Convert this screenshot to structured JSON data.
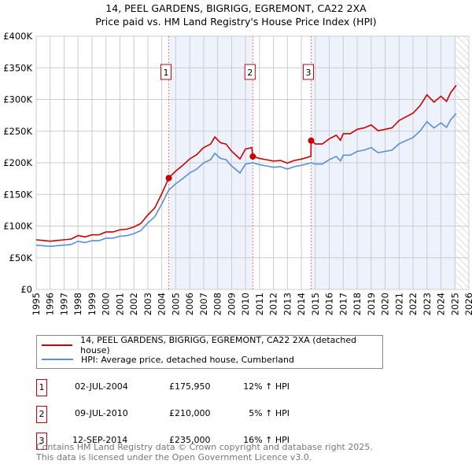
{
  "chart_data": {
    "type": "line",
    "title": "14, PEEL GARDENS, BIGRIGG, EGREMONT, CA22 2XA",
    "subtitle": "Price paid vs. HM Land Registry's House Price Index (HPI)",
    "xlim": [
      1995,
      2026
    ],
    "ylim": [
      0,
      400000
    ],
    "yticks": [
      0,
      50000,
      100000,
      150000,
      200000,
      250000,
      300000,
      350000,
      400000
    ],
    "ytick_labels": [
      "£0",
      "£50K",
      "£100K",
      "£150K",
      "£200K",
      "£250K",
      "£300K",
      "£350K",
      "£400K"
    ],
    "xticks": [
      "1995",
      "1996",
      "1997",
      "1998",
      "1999",
      "2000",
      "2001",
      "2002",
      "2003",
      "2004",
      "2005",
      "2006",
      "2007",
      "2008",
      "2009",
      "2010",
      "2011",
      "2012",
      "2013",
      "2014",
      "2015",
      "2016",
      "2017",
      "2018",
      "2019",
      "2020",
      "2021",
      "2022",
      "2023",
      "2024",
      "2025",
      "2026"
    ],
    "grid": true,
    "colors": {
      "property": "#cc0000",
      "hpi": "#5b8fd6",
      "shade": "#edf2fc",
      "marker": "#cc0000"
    },
    "shaded_ranges": [
      [
        2004.5,
        2010.52
      ],
      [
        2014.7,
        2025.1
      ]
    ],
    "forecast_hatch_from": 2025.1,
    "series": [
      {
        "name": "14, PEEL GARDENS, BIGRIGG, EGREMONT, CA22 2XA (detached house)",
        "key": "property",
        "x": [
          1995,
          1995.5,
          1996,
          1996.5,
          1997,
          1997.5,
          1998,
          1998.5,
          1999,
          1999.5,
          2000,
          2000.5,
          2001,
          2001.5,
          2002,
          2002.5,
          2003,
          2003.5,
          2004,
          2004.5,
          2005,
          2005.5,
          2006,
          2006.5,
          2007,
          2007.5,
          2007.8,
          2008.2,
          2008.6,
          2009,
          2009.6,
          2010,
          2010.45,
          2010.52,
          2011,
          2011.5,
          2012,
          2012.5,
          2013,
          2013.5,
          2014,
          2014.68,
          2014.7,
          2015,
          2015.5,
          2016,
          2016.5,
          2016.8,
          2017,
          2017.5,
          2018,
          2018.5,
          2019,
          2019.5,
          2020,
          2020.5,
          2021,
          2021.5,
          2022,
          2022.5,
          2023,
          2023.5,
          2024,
          2024.4,
          2024.7,
          2025.1
        ],
        "y": [
          78.4,
          77.3,
          76.2,
          77.3,
          78.4,
          79.5,
          85.1,
          82.9,
          86.2,
          86.2,
          90.7,
          90.7,
          94.1,
          95.2,
          98.6,
          104.2,
          117.6,
          128.8,
          151.2,
          175.95,
          187,
          196,
          206.1,
          212.8,
          224,
          229.6,
          240.8,
          231.8,
          229.6,
          218.4,
          206.1,
          221.8,
          224,
          210,
          206.9,
          204.8,
          202.7,
          203.7,
          199.5,
          203.7,
          205.8,
          210,
          235,
          229.7,
          229.7,
          237.8,
          243.6,
          235.5,
          245.9,
          245.9,
          252.9,
          255.2,
          259.8,
          250.6,
          252.9,
          255.2,
          266.8,
          272.6,
          278.4,
          290,
          307.4,
          295.8,
          305.1,
          297,
          310.9,
          322.5
        ],
        "unit": "£K"
      },
      {
        "name": "HPI: Average price, detached house, Cumberland",
        "key": "hpi",
        "x": [
          1995,
          1995.5,
          1996,
          1996.5,
          1997,
          1997.5,
          1998,
          1998.5,
          1999,
          1999.5,
          2000,
          2000.5,
          2001,
          2001.5,
          2002,
          2002.5,
          2003,
          2003.5,
          2004,
          2004.5,
          2005,
          2005.5,
          2006,
          2006.5,
          2007,
          2007.5,
          2007.8,
          2008.2,
          2008.6,
          2009,
          2009.6,
          2010,
          2010.52,
          2011,
          2011.5,
          2012,
          2012.5,
          2013,
          2013.5,
          2014,
          2014.7,
          2015,
          2015.5,
          2016,
          2016.5,
          2016.8,
          2017,
          2017.5,
          2018,
          2018.5,
          2019,
          2019.5,
          2020,
          2020.5,
          2021,
          2021.5,
          2022,
          2022.5,
          2023,
          2023.5,
          2024,
          2024.4,
          2024.7,
          2025.1
        ],
        "y": [
          70,
          69,
          68,
          69,
          70,
          71,
          76,
          74,
          77,
          77,
          81,
          81,
          84,
          85,
          88,
          93,
          105,
          115,
          135,
          157,
          167,
          175,
          184,
          190,
          200,
          205,
          215,
          207,
          205,
          195,
          184,
          198,
          200,
          197,
          195,
          193,
          194,
          190,
          194,
          196,
          200,
          198,
          198,
          205,
          210,
          203,
          212,
          212,
          218,
          220,
          224,
          216,
          218,
          220,
          230,
          235,
          240,
          250,
          265,
          255,
          263,
          256,
          268,
          278
        ],
        "unit": "£K"
      }
    ],
    "sales": [
      {
        "n": "1",
        "x": 2004.5,
        "y": 175.95,
        "date": "02-JUL-2004",
        "price": "£175,950",
        "hpi": "12% ↑ HPI"
      },
      {
        "n": "2",
        "x": 2010.52,
        "y": 210,
        "date": "09-JUL-2010",
        "price": "£210,000",
        "hpi": "5% ↑ HPI"
      },
      {
        "n": "3",
        "x": 2014.7,
        "y": 235,
        "date": "12-SEP-2014",
        "price": "£235,000",
        "hpi": "16% ↑ HPI"
      }
    ]
  },
  "footer": {
    "line1": "Contains HM Land Registry data © Crown copyright and database right 2025.",
    "line2": "This data is licensed under the Open Government Licence v3.0."
  }
}
